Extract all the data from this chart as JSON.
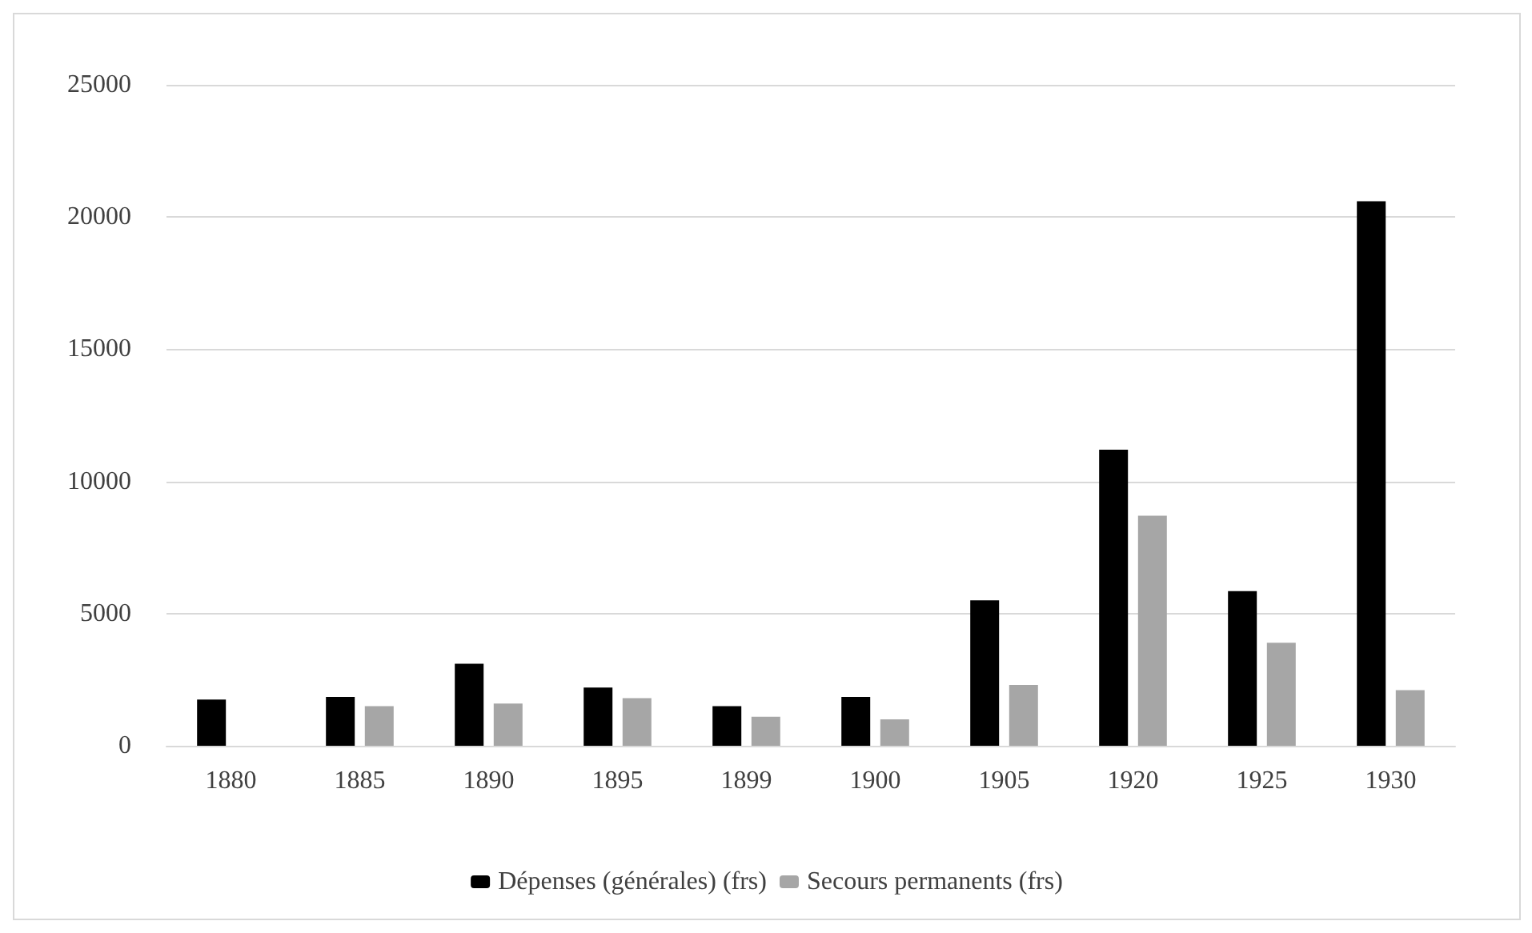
{
  "chart_data": {
    "type": "bar",
    "categories": [
      "1880",
      "1885",
      "1890",
      "1895",
      "1899",
      "1900",
      "1905",
      "1920",
      "1925",
      "1930"
    ],
    "series": [
      {
        "name": "Dépenses (générales) (frs)",
        "color": "#000000",
        "values": [
          1750,
          1850,
          3100,
          2200,
          1500,
          1850,
          5500,
          11200,
          5850,
          20600
        ]
      },
      {
        "name": "Secours permanents (frs)",
        "color": "#a6a6a6",
        "values": [
          null,
          1500,
          1600,
          1800,
          1100,
          1000,
          2300,
          8700,
          3900,
          2100
        ]
      }
    ],
    "ylim": [
      0,
      25000
    ],
    "yticks": [
      0,
      5000,
      10000,
      15000,
      20000,
      25000
    ],
    "grid": "y",
    "legend": "bottom"
  }
}
